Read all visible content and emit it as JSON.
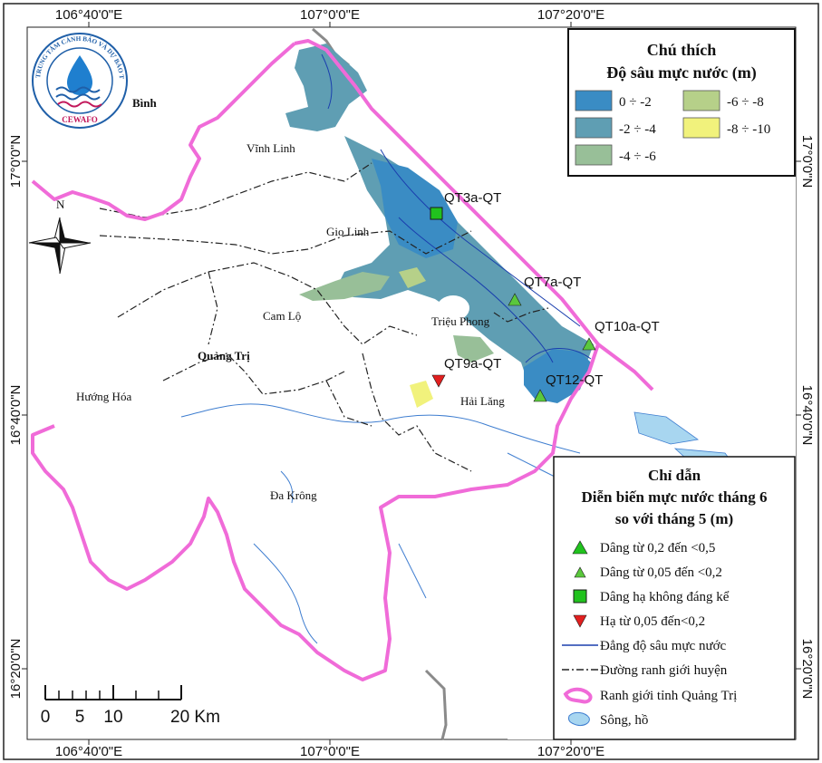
{
  "coords": {
    "top": [
      "106°40'0\"E",
      "107°0'0\"E",
      "107°20'0\"E"
    ],
    "bottom": [
      "106°40'0\"E",
      "107°0'0\"E",
      "107°20'0\"E"
    ],
    "left": [
      "17°0'0\"N",
      "16°40'0\"N",
      "16°20'0\"N"
    ],
    "right": [
      "17°0'0\"N",
      "16°40'0\"N",
      "16°20'0\"N"
    ]
  },
  "logo": {
    "ring_text": "TRUNG TÂM CẢNH BÁO VÀ DỰ BÁO TÀI NGUYÊN NƯỚC",
    "brand": "CEWAFO"
  },
  "places": {
    "binh": "Bình",
    "vinh_linh": "Vĩnh Linh",
    "gio_linh": "Gio Linh",
    "cam_lo": "Cam Lộ",
    "quang_tri": "Quảng Trị",
    "trieu_phong": "Triệu Phong",
    "huong_hoa": "Hướng Hóa",
    "hai_lang": "Hải Lăng",
    "da_krong": "Đa Krông"
  },
  "stations": [
    {
      "label": "QT3a-QT",
      "symbol": "square-green"
    },
    {
      "label": "QT7a-QT",
      "symbol": "triangle-up-green"
    },
    {
      "label": "QT10a-QT",
      "symbol": "triangle-up-green"
    },
    {
      "label": "QT9a-QT",
      "symbol": "triangle-down-red"
    },
    {
      "label": "QT12-QT",
      "symbol": "triangle-up-green"
    }
  ],
  "depth_legend": {
    "title_line1": "Chú thích",
    "title_line2": "Độ sâu mực nước (m)",
    "items": [
      {
        "label": "0 ÷ -2",
        "color": "#3a8cc4"
      },
      {
        "label": "-6 ÷ -8",
        "color": "#b6d089"
      },
      {
        "label": "-2 ÷ -4",
        "color": "#5f9eb3"
      },
      {
        "label": "-8 ÷ -10",
        "color": "#f1f27c"
      },
      {
        "label": "-4 ÷ -6",
        "color": "#98bf98"
      }
    ]
  },
  "guide_legend": {
    "title": "Chỉ dẫn",
    "subtitle_line1": "Diễn biến mực nước tháng 6",
    "subtitle_line2": "so với tháng 5 (m)",
    "items": [
      {
        "label": "Dâng từ 0,2 đến <0,5",
        "symbol": "triangle-up-green"
      },
      {
        "label": "Dâng từ 0,05 đến <0,2",
        "symbol": "triangle-up-green-small"
      },
      {
        "label": "Dâng hạ không đáng kể",
        "symbol": "square-green"
      },
      {
        "label": "Hạ từ 0,05 đến<0,2",
        "symbol": "triangle-down-red"
      },
      {
        "label": "Đẳng độ sâu mực nước",
        "symbol": "blue-line"
      },
      {
        "label": "Đường ranh giới huyện",
        "symbol": "dash-dot-line"
      },
      {
        "label": "Ranh giới tỉnh Quảng Trị",
        "symbol": "pink-line"
      },
      {
        "label": "Sông, hồ",
        "symbol": "water"
      }
    ]
  },
  "scale_bar": {
    "ticks": [
      "0",
      "5",
      "10",
      "20 Km"
    ]
  },
  "north_arrow": {
    "label": "N"
  },
  "colors": {
    "province_border": "#f06bd8",
    "district_border": "#222222",
    "isoline": "#1a3fae",
    "river": "#3f7ed0",
    "sea": "#a8d6f0"
  }
}
